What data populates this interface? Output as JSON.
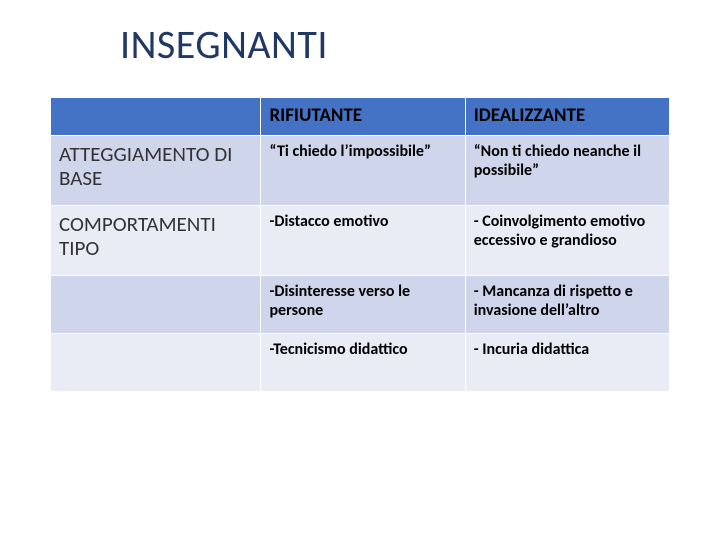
{
  "title": "INSEGNANTI",
  "colors": {
    "title_color": "#1f3864",
    "header_bg": "#4472c4",
    "band_a": "#cfd5ea",
    "band_b": "#e9ebf5",
    "cell_border": "#ffffff",
    "rowlabel_color": "#333333",
    "cell_text_color": "#000000",
    "background": "#ffffff"
  },
  "typography": {
    "title_fontsize": 40,
    "header_fontsize": 19,
    "rowlabel_fontsize": 21,
    "cell_fontsize": 16,
    "font_family": "Calibri"
  },
  "table": {
    "type": "table",
    "column_widths_pct": [
      34,
      33,
      33
    ],
    "header": {
      "blank": "",
      "col1": "RIFIUTANTE",
      "col2": "IDEALIZZANTE"
    },
    "rows": [
      {
        "band": "a",
        "label": "ATTEGGIAMENTO DI BASE",
        "c1": "“Ti chiedo l’impossibile”",
        "c2": "“Non ti chiedo neanche il possibile”"
      },
      {
        "band": "b",
        "label": "COMPORTAMENTI TIPO",
        "c1": "-Distacco emotivo",
        "c2": "- Coinvolgimento emotivo eccessivo e grandioso"
      },
      {
        "band": "a",
        "label": "",
        "c1": "-Disinteresse verso le persone",
        "c2": "- Mancanza di rispetto e invasione dell’altro"
      },
      {
        "band": "b",
        "label": "",
        "c1": "-Tecnicismo didattico",
        "c2": "- Incuria didattica"
      }
    ]
  }
}
